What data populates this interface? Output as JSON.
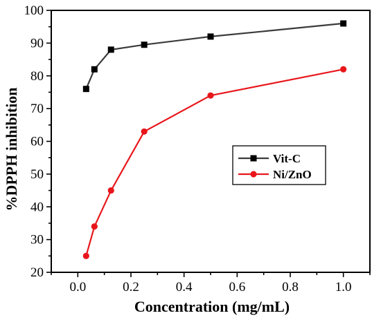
{
  "chart_data": {
    "type": "line",
    "title": "",
    "xlabel": "Concentration (mg/mL)",
    "ylabel": "%DPPH inhibition",
    "xlim": [
      -0.1,
      1.1
    ],
    "ylim": [
      20,
      100
    ],
    "x_ticks": [
      0.0,
      0.2,
      0.4,
      0.6,
      0.8,
      1.0
    ],
    "x_tick_labels": [
      "0.0",
      "0.2",
      "0.4",
      "0.6",
      "0.8",
      "1.0"
    ],
    "y_ticks": [
      20,
      30,
      40,
      50,
      60,
      70,
      80,
      90,
      100
    ],
    "y_tick_labels": [
      "20",
      "30",
      "40",
      "50",
      "60",
      "70",
      "80",
      "90",
      "100"
    ],
    "grid": false,
    "legend": {
      "placement": "center-right"
    },
    "series": [
      {
        "name": "Vit-C",
        "color": "#3a3a3a",
        "marker": "square",
        "x": [
          0.03125,
          0.0625,
          0.125,
          0.25,
          0.5,
          1.0
        ],
        "y": [
          76,
          82,
          88,
          89.5,
          92,
          96
        ]
      },
      {
        "name": "Ni/ZnO",
        "color": "#e8161b",
        "marker": "circle",
        "x": [
          0.03125,
          0.0625,
          0.125,
          0.25,
          0.5,
          1.0
        ],
        "y": [
          25,
          34,
          45,
          63,
          74,
          82
        ]
      }
    ]
  }
}
